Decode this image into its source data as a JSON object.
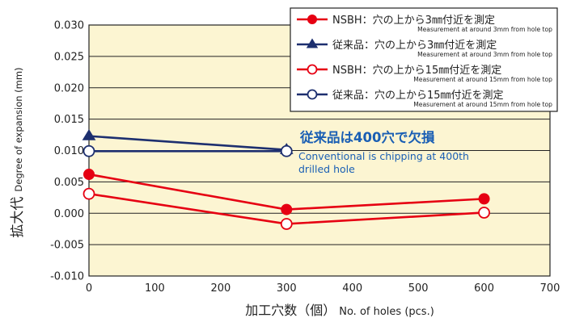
{
  "chart_data": {
    "type": "line",
    "title": "",
    "ylabel_main": "拡大代",
    "ylabel_sub": "Degree of expansion (mm)",
    "xlabel_main": "加工穴数（個）",
    "xlabel_sub": "No. of holes (pcs.)",
    "xlim": [
      0,
      700
    ],
    "ylim": [
      -0.01,
      0.03
    ],
    "x_ticks": [
      "0",
      "100",
      "200",
      "300",
      "400",
      "500",
      "600",
      "700"
    ],
    "y_ticks": [
      "0.030",
      "0.025",
      "0.020",
      "0.015",
      "0.010",
      "0.005",
      "0.000",
      "-0.005",
      "-0.010"
    ],
    "grid": "horizontal",
    "legend_position": "top-right",
    "series": [
      {
        "name": "NSBH：穴の上から3㎜付近を測定",
        "subname": "Measurement at around 3mm from hole top",
        "color": "#e60012",
        "marker": "filled-circle",
        "x": [
          0,
          300,
          600
        ],
        "y": [
          0.0062,
          0.0006,
          0.0023
        ]
      },
      {
        "name": "従来品：穴の上から3㎜付近を測定",
        "subname": "Measurement at around 3mm from hole top",
        "color": "#1d2f6f",
        "marker": "filled-triangle",
        "x": [
          0,
          300
        ],
        "y": [
          0.0123,
          0.0101
        ]
      },
      {
        "name": "NSBH：穴の上から15㎜付近を測定",
        "subname": "Measurement at around 15mm from hole top",
        "color": "#e60012",
        "marker": "open-circle",
        "x": [
          0,
          300,
          600
        ],
        "y": [
          0.0031,
          -0.0017,
          0.0001
        ]
      },
      {
        "name": "従来品：穴の上から15㎜付近を測定",
        "subname": "Measurement at around 15mm from hole top",
        "color": "#1d2f6f",
        "marker": "open-circle",
        "x": [
          0,
          300
        ],
        "y": [
          0.0099,
          0.0099
        ]
      }
    ],
    "annotations": [
      {
        "text": "従来品は400穴で欠損",
        "sub_lines": [
          "Conventional is chipping at 400th",
          "drilled hole"
        ],
        "color": "#1a5fb4"
      }
    ],
    "colors": {
      "plot_bg": "#fcf5d2",
      "grid": "#222222",
      "axis": "#222222"
    }
  }
}
